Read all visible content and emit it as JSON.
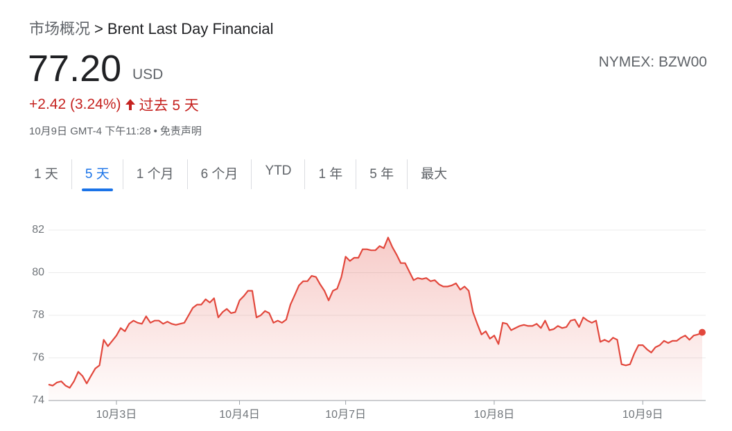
{
  "header": {
    "breadcrumb": [
      "市场概况",
      "Brent Last Day Financial"
    ],
    "breadcrumb_separator": ">",
    "price": "77.20",
    "currency": "USD",
    "exchange": "NYMEX: BZW00",
    "change": "+2.42 (3.24%)",
    "change_period": "过去 5 天",
    "timestamp": "10月9日 GMT-4 下午11:28",
    "separator": "•",
    "disclaimer": "免责声明"
  },
  "tabs": {
    "items": [
      "1 天",
      "5 天",
      "1 个月",
      "6 个月",
      "YTD",
      "1 年",
      "5 年",
      "最大"
    ],
    "selected": 1
  },
  "chart_data": {
    "type": "line",
    "color": "#e2473c",
    "grid": true,
    "ylim": [
      74,
      82
    ],
    "yticks": [
      74,
      76,
      78,
      80,
      82
    ],
    "xlim": [
      0,
      154
    ],
    "xticks": [
      {
        "value": 16,
        "label": "10月3日"
      },
      {
        "value": 45,
        "label": "10月4日"
      },
      {
        "value": 70,
        "label": "10月7日"
      },
      {
        "value": 105,
        "label": "10月8日"
      },
      {
        "value": 140,
        "label": "10月9日"
      }
    ],
    "values": [
      74.75,
      74.7,
      74.85,
      74.9,
      74.7,
      74.6,
      74.9,
      75.35,
      75.15,
      74.8,
      75.15,
      75.5,
      75.65,
      76.85,
      76.55,
      76.8,
      77.05,
      77.4,
      77.25,
      77.6,
      77.75,
      77.65,
      77.6,
      77.95,
      77.65,
      77.75,
      77.75,
      77.6,
      77.7,
      77.6,
      77.55,
      77.6,
      77.65,
      78.0,
      78.35,
      78.5,
      78.5,
      78.75,
      78.6,
      78.8,
      77.9,
      78.15,
      78.3,
      78.1,
      78.15,
      78.7,
      78.9,
      79.15,
      79.15,
      77.9,
      78.0,
      78.2,
      78.1,
      77.65,
      77.75,
      77.65,
      77.8,
      78.5,
      78.95,
      79.4,
      79.6,
      79.6,
      79.85,
      79.8,
      79.45,
      79.15,
      78.7,
      79.15,
      79.25,
      79.8,
      80.75,
      80.55,
      80.7,
      80.7,
      81.1,
      81.1,
      81.05,
      81.05,
      81.25,
      81.15,
      81.65,
      81.2,
      80.85,
      80.45,
      80.45,
      80.05,
      79.65,
      79.75,
      79.7,
      79.75,
      79.6,
      79.65,
      79.45,
      79.35,
      79.35,
      79.4,
      79.5,
      79.2,
      79.35,
      79.15,
      78.15,
      77.6,
      77.1,
      77.25,
      76.9,
      77.05,
      76.65,
      77.65,
      77.6,
      77.3,
      77.4,
      77.5,
      77.55,
      77.5,
      77.5,
      77.6,
      77.4,
      77.75,
      77.3,
      77.35,
      77.5,
      77.4,
      77.45,
      77.75,
      77.8,
      77.45,
      77.9,
      77.75,
      77.65,
      77.75,
      76.75,
      76.85,
      76.75,
      76.95,
      76.85,
      75.7,
      75.65,
      75.7,
      76.2,
      76.6,
      76.6,
      76.4,
      76.25,
      76.5,
      76.6,
      76.8,
      76.7,
      76.8,
      76.8,
      76.95,
      77.05,
      76.85,
      77.05,
      77.1,
      77.2
    ]
  }
}
